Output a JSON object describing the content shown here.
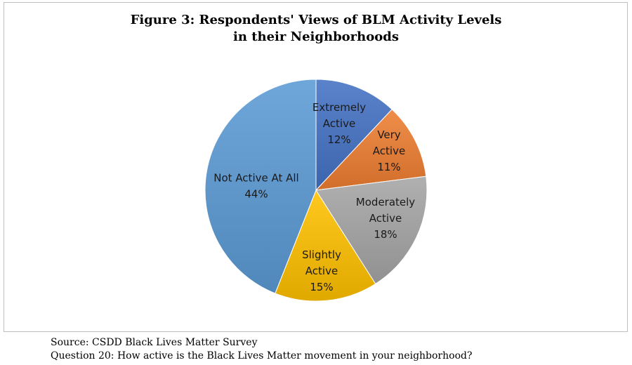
{
  "chart_data": {
    "type": "pie",
    "title_lines": [
      "Figure 3: Respondents' Views of BLM Activity Levels",
      "in their Neighborhoods"
    ],
    "slices": [
      {
        "label_lines": [
          "Extremely",
          "Active"
        ],
        "pct_label": "12%",
        "value": 12,
        "color": "#4472c4"
      },
      {
        "label_lines": [
          "Very",
          "Active"
        ],
        "pct_label": "11%",
        "value": 11,
        "color": "#ed7d31"
      },
      {
        "label_lines": [
          "Moderately",
          "Active"
        ],
        "pct_label": "18%",
        "value": 18,
        "color": "#a5a5a5"
      },
      {
        "label_lines": [
          "Slightly",
          "Active"
        ],
        "pct_label": "15%",
        "value": 15,
        "color": "#ffc000"
      },
      {
        "label_lines": [
          "Not Active At All"
        ],
        "pct_label": "44%",
        "value": 44,
        "color": "#5b9bd5"
      }
    ],
    "start_angle": "12 o'clock",
    "direction": "clockwise",
    "legend": "none"
  },
  "caption": {
    "source": "Source: CSDD Black Lives Matter Survey",
    "question": "Question 20: How active is the Black Lives Matter movement in your neighborhood?"
  }
}
